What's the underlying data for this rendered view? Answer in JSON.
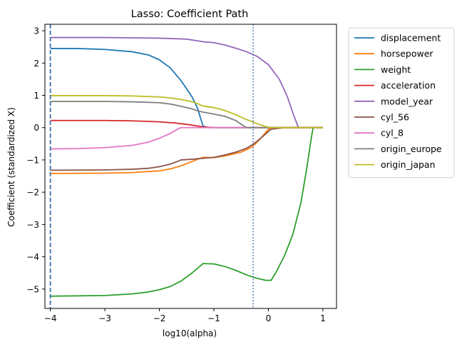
{
  "chart_data": {
    "type": "line",
    "title": "Lasso: Coefficient Path",
    "xlabel": "log10(alpha)",
    "ylabel": "Coefficient (standardized X)",
    "xlim": [
      -4.1,
      1.25
    ],
    "ylim": [
      -5.6,
      3.2
    ],
    "xticks": [
      -4,
      -3,
      -2,
      -1,
      0,
      1
    ],
    "yticks": [
      -5,
      -4,
      -3,
      -2,
      -1,
      0,
      1,
      2,
      3
    ],
    "grid": false,
    "legend_position": "outside-upper-right",
    "vlines": [
      {
        "x": -4.0,
        "style": "dashed",
        "color": "#3f6fa8"
      },
      {
        "x": -0.28,
        "style": "dotted",
        "color": "#3f6fa8"
      }
    ],
    "series": [
      {
        "name": "displacement",
        "color": "#1f77b4",
        "x": [
          -4,
          -3.5,
          -3,
          -2.5,
          -2.2,
          -2,
          -1.8,
          -1.6,
          -1.5,
          -1.4,
          -1.3,
          -1.2,
          -1.1,
          -1.0,
          1.0
        ],
        "y": [
          2.45,
          2.45,
          2.42,
          2.35,
          2.25,
          2.1,
          1.85,
          1.45,
          1.2,
          0.95,
          0.6,
          0.05,
          0,
          0,
          0
        ]
      },
      {
        "name": "horsepower",
        "color": "#ff7f0e",
        "x": [
          -4,
          -3,
          -2.5,
          -2.0,
          -1.8,
          -1.6,
          -1.4,
          -1.2,
          -1.0,
          -0.8,
          -0.5,
          -0.3,
          -0.15,
          0.0,
          0.3,
          1.0
        ],
        "y": [
          -1.42,
          -1.41,
          -1.39,
          -1.34,
          -1.28,
          -1.18,
          -1.05,
          -0.92,
          -0.93,
          -0.88,
          -0.76,
          -0.6,
          -0.35,
          -0.05,
          0,
          0
        ]
      },
      {
        "name": "weight",
        "color": "#2ca02c",
        "x": [
          -4,
          -3,
          -2.5,
          -2.2,
          -2.0,
          -1.8,
          -1.6,
          -1.4,
          -1.2,
          -1.0,
          -0.8,
          -0.6,
          -0.4,
          -0.25,
          -0.05,
          0.05,
          0.15,
          0.3,
          0.45,
          0.6,
          0.7,
          0.78,
          0.82,
          1.0
        ],
        "y": [
          -5.22,
          -5.2,
          -5.15,
          -5.09,
          -5.02,
          -4.92,
          -4.75,
          -4.5,
          -4.21,
          -4.22,
          -4.3,
          -4.42,
          -4.56,
          -4.65,
          -4.73,
          -4.73,
          -4.45,
          -3.95,
          -3.3,
          -2.3,
          -1.3,
          -0.4,
          0,
          0
        ]
      },
      {
        "name": "acceleration",
        "color": "#d62728",
        "x": [
          -4,
          -3,
          -2.5,
          -2.0,
          -1.7,
          -1.5,
          -1.3,
          -1.2,
          -1.0,
          -0.5,
          1.0
        ],
        "y": [
          0.22,
          0.22,
          0.21,
          0.18,
          0.14,
          0.1,
          0.05,
          0.02,
          0,
          0,
          0
        ]
      },
      {
        "name": "model_year",
        "color": "#9467bd",
        "x": [
          -4,
          -3,
          -2.5,
          -2.0,
          -1.5,
          -1.2,
          -1.0,
          -0.8,
          -0.6,
          -0.4,
          -0.2,
          0.0,
          0.2,
          0.35,
          0.45,
          0.55,
          1.0
        ],
        "y": [
          2.79,
          2.79,
          2.78,
          2.77,
          2.74,
          2.66,
          2.63,
          2.56,
          2.46,
          2.35,
          2.2,
          1.95,
          1.5,
          0.95,
          0.45,
          0,
          0
        ]
      },
      {
        "name": "cyl_56",
        "color": "#8c564b",
        "x": [
          -4,
          -3,
          -2.5,
          -2.2,
          -2.0,
          -1.8,
          -1.7,
          -1.6,
          -1.4,
          -1.2,
          -1.0,
          -0.8,
          -0.6,
          -0.4,
          -0.25,
          -0.1,
          0.05,
          0.3,
          1.0
        ],
        "y": [
          -1.32,
          -1.31,
          -1.29,
          -1.26,
          -1.21,
          -1.13,
          -1.07,
          -1.0,
          -0.98,
          -0.95,
          -0.92,
          -0.85,
          -0.76,
          -0.64,
          -0.48,
          -0.27,
          -0.05,
          0,
          0
        ]
      },
      {
        "name": "cyl_8",
        "color": "#e377c2",
        "x": [
          -4,
          -3.5,
          -3.0,
          -2.5,
          -2.2,
          -2.0,
          -1.8,
          -1.65,
          -1.6,
          1.0
        ],
        "y": [
          -0.66,
          -0.65,
          -0.62,
          -0.55,
          -0.45,
          -0.33,
          -0.18,
          -0.03,
          0,
          0
        ]
      },
      {
        "name": "origin_europe",
        "color": "#7f7f7f",
        "x": [
          -4,
          -3,
          -2.5,
          -2.0,
          -1.8,
          -1.6,
          -1.4,
          -1.3,
          -1.2,
          -1.0,
          -0.8,
          -0.6,
          -0.45,
          -0.4,
          1.0
        ],
        "y": [
          0.81,
          0.81,
          0.8,
          0.77,
          0.73,
          0.66,
          0.58,
          0.52,
          0.48,
          0.42,
          0.35,
          0.22,
          0.05,
          0,
          0
        ]
      },
      {
        "name": "origin_japan",
        "color": "#bcbd22",
        "x": [
          -4,
          -3,
          -2.5,
          -2.0,
          -1.8,
          -1.6,
          -1.4,
          -1.3,
          -1.2,
          -1.0,
          -0.8,
          -0.6,
          -0.4,
          -0.2,
          -0.05,
          0.05,
          1.0
        ],
        "y": [
          0.99,
          0.99,
          0.98,
          0.95,
          0.92,
          0.87,
          0.8,
          0.74,
          0.67,
          0.62,
          0.53,
          0.4,
          0.25,
          0.12,
          0.03,
          0,
          0
        ]
      }
    ]
  }
}
